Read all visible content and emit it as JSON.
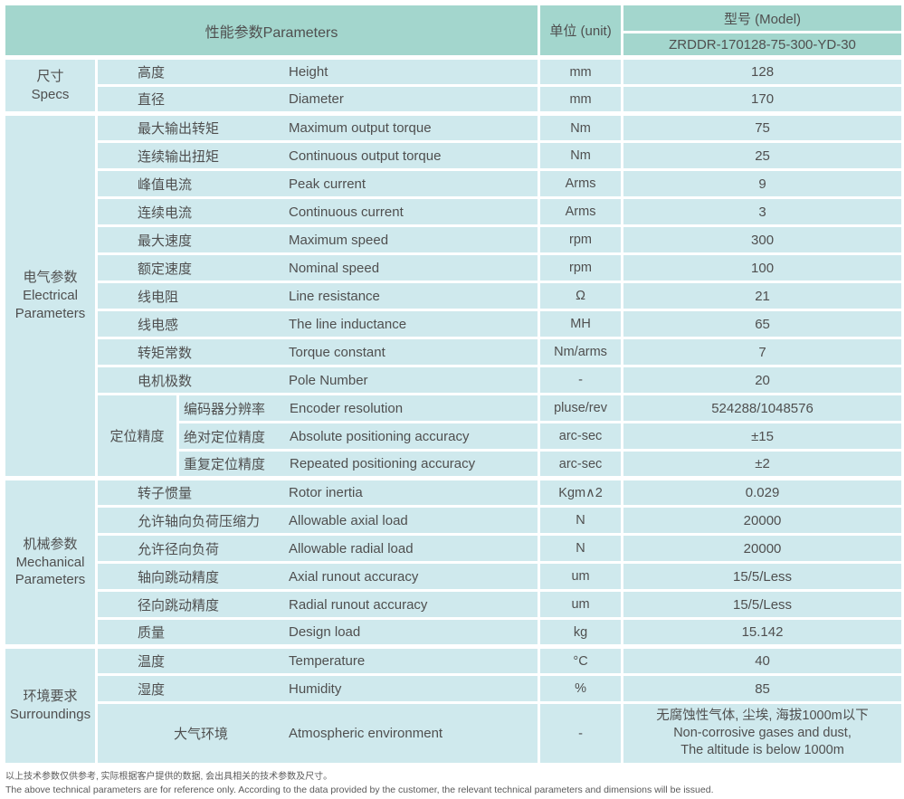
{
  "header": {
    "parameters": "性能参数Parameters",
    "unit": "单位 (unit)",
    "model": "型号 (Model)",
    "model_value": "ZRDDR-170128-75-300-YD-30"
  },
  "categories": [
    {
      "zh": "尺寸",
      "en": "Specs"
    },
    {
      "zh": "电气参数",
      "en": "Electrical Parameters"
    },
    {
      "zh": "机械参数",
      "en": "Mechanical Parameters"
    },
    {
      "zh": "环境要求",
      "en": "Surroundings"
    }
  ],
  "subgroup": {
    "zh": "定位精度"
  },
  "rows": [
    {
      "zh": "高度",
      "en": "Height",
      "unit": "mm",
      "value": "128"
    },
    {
      "zh": "直径",
      "en": "Diameter",
      "unit": "mm",
      "value": "170"
    },
    {
      "zh": "最大输出转矩",
      "en": "Maximum output torque",
      "unit": "Nm",
      "value": "75"
    },
    {
      "zh": "连续输出扭矩",
      "en": "Continuous output torque",
      "unit": "Nm",
      "value": "25"
    },
    {
      "zh": "峰值电流",
      "en": "Peak current",
      "unit": "Arms",
      "value": "9"
    },
    {
      "zh": "连续电流",
      "en": "Continuous current",
      "unit": "Arms",
      "value": "3"
    },
    {
      "zh": "最大速度",
      "en": "Maximum speed",
      "unit": "rpm",
      "value": "300"
    },
    {
      "zh": "额定速度",
      "en": "Nominal speed",
      "unit": "rpm",
      "value": "100"
    },
    {
      "zh": "线电阻",
      "en": "Line resistance",
      "unit": "Ω",
      "value": "21"
    },
    {
      "zh": "线电感",
      "en": "The line inductance",
      "unit": "MH",
      "value": "65"
    },
    {
      "zh": "转矩常数",
      "en": "Torque constant",
      "unit": "Nm/arms",
      "value": "7"
    },
    {
      "zh": "电机极数",
      "en": "Pole Number",
      "unit": "-",
      "value": "20"
    },
    {
      "zh": "编码器分辨率",
      "en": "Encoder resolution",
      "unit": "pluse/rev",
      "value": "524288/1048576"
    },
    {
      "zh": "绝对定位精度",
      "en": "Absolute positioning accuracy",
      "unit": "arc-sec",
      "value": "±15"
    },
    {
      "zh": "重复定位精度",
      "en": "Repeated positioning accuracy",
      "unit": "arc-sec",
      "value": "±2"
    },
    {
      "zh": "转子惯量",
      "en": "Rotor inertia",
      "unit": "Kgm∧2",
      "value": "0.029"
    },
    {
      "zh": "允许轴向负荷压缩力",
      "en": "Allowable axial load",
      "unit": "N",
      "value": "20000"
    },
    {
      "zh": "允许径向负荷",
      "en": "Allowable radial load",
      "unit": "N",
      "value": "20000"
    },
    {
      "zh": "轴向跳动精度",
      "en": "Axial runout accuracy",
      "unit": "um",
      "value": "15/5/Less"
    },
    {
      "zh": "径向跳动精度",
      "en": "Radial runout accuracy",
      "unit": "um",
      "value": "15/5/Less"
    },
    {
      "zh": "质量",
      "en": "Design load",
      "unit": "kg",
      "value": "15.142"
    },
    {
      "zh": "温度",
      "en": "Temperature",
      "unit": "°C",
      "value": "40"
    },
    {
      "zh": "湿度",
      "en": "Humidity",
      "unit": "%",
      "value": "85"
    },
    {
      "zh": "大气环境",
      "en": "Atmospheric environment",
      "unit": "-",
      "value_lines": [
        "无腐蚀性气体, 尘埃, 海拔1000m以下",
        "Non-corrosive gases and dust,",
        "The altitude is below 1000m"
      ]
    }
  ],
  "footer": {
    "note_zh": "以上技术参数仅供参考, 实际根据客户提供的数据, 会出具相关的技术参数及尺寸。",
    "note_en": "The above technical parameters are for reference only. According to the data provided by the customer, the relevant technical parameters and dimensions will be issued."
  },
  "colors": {
    "header_bg": "#a3d6cd",
    "row_bg": "#cfe9ed",
    "border": "#ffffff",
    "text": "#4f4f4f"
  }
}
